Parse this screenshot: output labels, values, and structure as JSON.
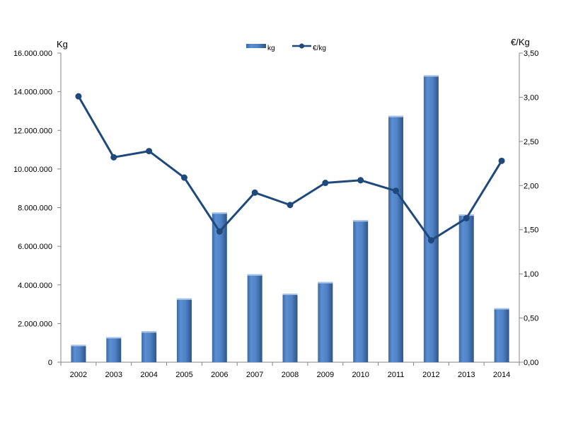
{
  "chart_data": {
    "type": "bar",
    "categories": [
      "2002",
      "2003",
      "2004",
      "2005",
      "2006",
      "2007",
      "2008",
      "2009",
      "2010",
      "2011",
      "2012",
      "2013",
      "2014"
    ],
    "series": [
      {
        "name": "kg",
        "type": "bar",
        "axis": "left",
        "color": "#4f81bd",
        "values": [
          900000,
          1300000,
          1600000,
          3300000,
          7750000,
          4550000,
          3550000,
          4150000,
          7350000,
          12750000,
          14850000,
          7650000,
          2800000
        ]
      },
      {
        "name": "€/kg",
        "type": "line",
        "axis": "right",
        "color": "#1f497d",
        "values": [
          3.01,
          2.32,
          2.39,
          2.09,
          1.48,
          1.92,
          1.78,
          2.03,
          2.06,
          1.94,
          1.38,
          1.63,
          2.28
        ]
      }
    ],
    "left_axis": {
      "label": "Kg",
      "ylim": [
        0,
        16000000
      ],
      "ticks": [
        "0",
        "2.000.000",
        "4.000.000",
        "6.000.000",
        "8.000.000",
        "10.000.000",
        "12.000.000",
        "14.000.000",
        "16.000.000"
      ]
    },
    "right_axis": {
      "label": "€/Kg",
      "ylim": [
        0,
        3.5
      ],
      "ticks": [
        "0,00",
        "0,50",
        "1,00",
        "1,50",
        "2,00",
        "2,50",
        "3,00",
        "3,50"
      ]
    },
    "legend": {
      "placement": "top-center",
      "entries": [
        "kg",
        "€/kg"
      ]
    },
    "grid": false
  }
}
